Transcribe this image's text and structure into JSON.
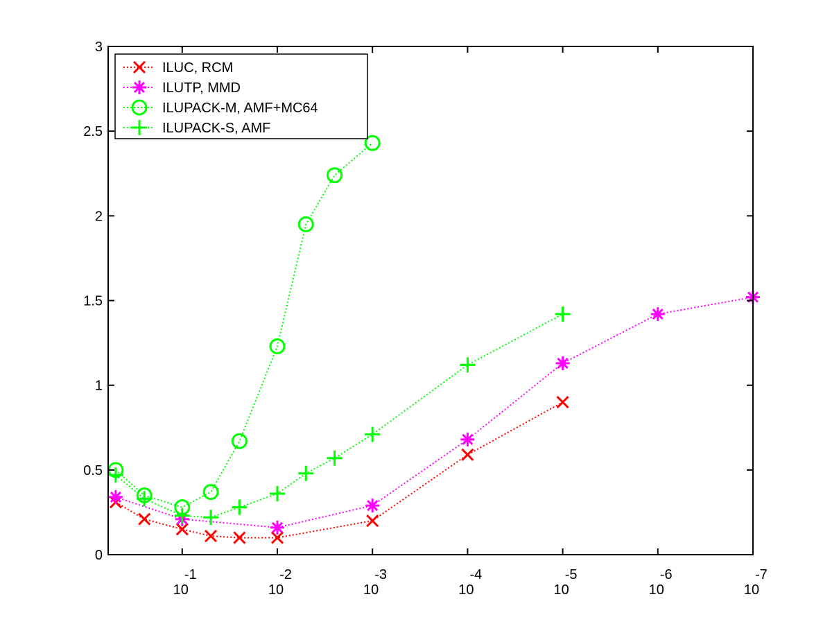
{
  "chart_data": {
    "type": "line",
    "title": "",
    "xlabel": "",
    "ylabel": "",
    "x_scale": "log",
    "x_direction": "decreasing",
    "xlim": [
      0.6,
      1e-07
    ],
    "ylim": [
      0,
      3
    ],
    "yticks": [
      0,
      0.5,
      1,
      1.5,
      2,
      2.5,
      3
    ],
    "ytick_labels": [
      "0",
      "0.5",
      "1",
      "1.5",
      "2",
      "2.5",
      "3"
    ],
    "xticks": [
      {
        "value": 0.1,
        "base": "10",
        "exp": "-1"
      },
      {
        "value": 0.01,
        "base": "10",
        "exp": "-2"
      },
      {
        "value": 0.001,
        "base": "10",
        "exp": "-3"
      },
      {
        "value": 0.0001,
        "base": "10",
        "exp": "-4"
      },
      {
        "value": 1e-05,
        "base": "10",
        "exp": "-5"
      },
      {
        "value": 1e-06,
        "base": "10",
        "exp": "-6"
      },
      {
        "value": 1e-07,
        "base": "10",
        "exp": "-7"
      }
    ],
    "grid": false,
    "legend_position": "top-left",
    "series": [
      {
        "name": "ILUC, RCM",
        "color": "#ff0000",
        "marker": "x",
        "x": [
          0.5,
          0.25,
          0.1,
          0.05,
          0.025,
          0.01,
          0.001,
          0.0001,
          1e-05
        ],
        "y": [
          0.31,
          0.21,
          0.15,
          0.11,
          0.1,
          0.1,
          0.2,
          0.59,
          0.9
        ]
      },
      {
        "name": "ILUTP, MMD",
        "color": "#ff00ff",
        "marker": "asterisk",
        "x": [
          0.5,
          0.1,
          0.01,
          0.001,
          0.0001,
          1e-05,
          1e-06,
          1e-07
        ],
        "y": [
          0.34,
          0.21,
          0.16,
          0.29,
          0.68,
          1.13,
          1.42,
          1.52
        ]
      },
      {
        "name": "ILUPACK-M, AMF+MC64",
        "color": "#00ff00",
        "marker": "circle",
        "x": [
          0.5,
          0.25,
          0.1,
          0.05,
          0.025,
          0.01,
          0.005,
          0.0025,
          0.001
        ],
        "y": [
          0.5,
          0.35,
          0.28,
          0.37,
          0.67,
          1.23,
          1.95,
          2.24,
          2.43
        ]
      },
      {
        "name": "ILUPACK-S, AMF",
        "color": "#00ff00",
        "marker": "plus",
        "x": [
          0.5,
          0.25,
          0.1,
          0.05,
          0.025,
          0.01,
          0.005,
          0.0025,
          0.001,
          0.0001,
          1e-05
        ],
        "y": [
          0.47,
          0.33,
          0.23,
          0.22,
          0.28,
          0.36,
          0.48,
          0.57,
          0.71,
          1.12,
          1.42
        ]
      }
    ]
  }
}
